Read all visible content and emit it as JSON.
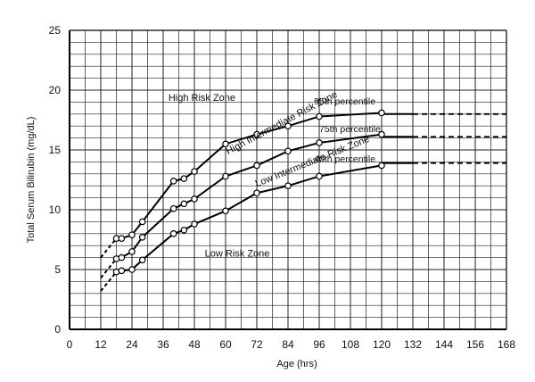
{
  "chart_data": {
    "type": "line",
    "xlabel": "Age (hrs)",
    "ylabel": "Total Serum Bilirubin (mg/dL)",
    "xlim": [
      0,
      168
    ],
    "ylim": [
      0,
      25
    ],
    "xticks": [
      "0",
      "12",
      "24",
      "36",
      "48",
      "60",
      "72",
      "84",
      "96",
      "108",
      "120",
      "132",
      "144",
      "156",
      "168"
    ],
    "yticks": [
      "0",
      "5",
      "10",
      "15",
      "20",
      "25"
    ],
    "grid": true,
    "series": [
      {
        "name": "95th percentile",
        "x": [
          18,
          20,
          24,
          28,
          40,
          44,
          48,
          60,
          72,
          84,
          96,
          120
        ],
        "y": [
          7.6,
          7.6,
          7.9,
          9.0,
          12.4,
          12.6,
          13.2,
          15.5,
          16.3,
          17.0,
          17.8,
          18.1
        ],
        "extension": {
          "x": [
            120,
            168
          ],
          "y": [
            18.0,
            18.0
          ]
        }
      },
      {
        "name": "75th percentile",
        "x": [
          18,
          20,
          24,
          28,
          40,
          44,
          48,
          60,
          72,
          84,
          96,
          120
        ],
        "y": [
          5.9,
          6.0,
          6.5,
          7.7,
          10.1,
          10.5,
          10.9,
          12.8,
          13.7,
          14.9,
          15.6,
          16.3
        ],
        "extension": {
          "x": [
            120,
            168
          ],
          "y": [
            16.1,
            16.1
          ]
        }
      },
      {
        "name": "40th percentile",
        "x": [
          18,
          20,
          24,
          28,
          40,
          44,
          48,
          60,
          72,
          84,
          96,
          120
        ],
        "y": [
          4.8,
          4.9,
          5.0,
          5.8,
          8.0,
          8.3,
          8.8,
          9.9,
          11.4,
          12.0,
          12.8,
          13.7
        ],
        "extension": {
          "x": [
            120,
            168
          ],
          "y": [
            13.9,
            13.9
          ]
        }
      }
    ],
    "annotations": [
      {
        "text": "High Risk Zone",
        "x": 38,
        "y": 19.1,
        "rotate": 0
      },
      {
        "text": "High Intermediate Risk Zone",
        "x": 61,
        "y": 14.6,
        "rotate": -28
      },
      {
        "text": "Low Intermediate Risk Zone",
        "x": 72,
        "y": 11.9,
        "rotate": -22
      },
      {
        "text": "Low Risk Zone",
        "x": 52,
        "y": 6.1,
        "rotate": 0
      },
      {
        "text": "95th percentile",
        "x": 94,
        "y": 18.8,
        "rotate": 0
      },
      {
        "text": "75th percentile",
        "x": 96,
        "y": 16.5,
        "rotate": 0
      },
      {
        "text": "40th percentile",
        "x": 94,
        "y": 14.0,
        "rotate": 0
      }
    ]
  }
}
